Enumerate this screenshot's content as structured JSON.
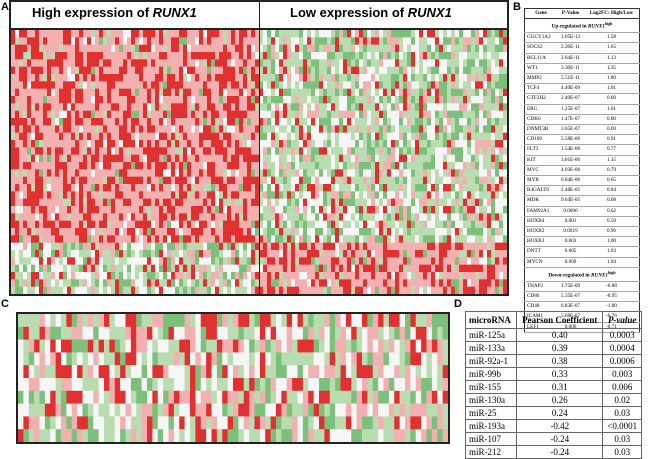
{
  "panel_labels": {
    "a": "A",
    "b": "B",
    "c": "C",
    "d": "D"
  },
  "panel_a": {
    "high_prefix": "High expression of ",
    "high_gene": "RUNX1",
    "low_prefix": "Low expression of ",
    "low_gene": "RUNX1"
  },
  "colors": {
    "red": "#e03030",
    "light_red": "#f2b0b0",
    "white": "#f6f6f6",
    "light_green": "#b9dcb0",
    "green": "#7cc07c"
  },
  "table_b": {
    "headers": [
      "Gene",
      "P-Value",
      "Log2FC: High/Low"
    ],
    "up_title_prefix": "Up-regulated in ",
    "up_title_gene": "RUNX1",
    "up_title_sup": "high",
    "up_rows": [
      [
        "GUCY1A3",
        "1.05E-13",
        "1.58"
      ],
      [
        "SOCS2",
        "2.26E-11",
        "1.65"
      ],
      [
        "BCL11A",
        "2.64E-11",
        "1.13"
      ],
      [
        "WT1",
        "3.30E-11",
        "1.35"
      ],
      [
        "MMP2",
        "5.51E-11",
        "1.80"
      ],
      [
        "TCF4",
        "4.40E-09",
        "1.01"
      ],
      [
        "GTF2H2",
        "2.40E-07",
        "0.60"
      ],
      [
        "ERG",
        "1.25E-07",
        "1.01"
      ],
      [
        "CDK6",
        "1.47E-07",
        "0.80"
      ],
      [
        "DNMT3B",
        "3.65E-07",
        "0.69"
      ],
      [
        "CD109",
        "5.58E-06",
        "0.91"
      ],
      [
        "FLT3",
        "1.54E-06",
        "0.77"
      ],
      [
        "KIT",
        "3.01E-06",
        "1.15"
      ],
      [
        "MYC",
        "4.93E-06",
        "0.79"
      ],
      [
        "MYB",
        "6.04E-06",
        "0.65"
      ],
      [
        "B4GALT6",
        "2.48E-05",
        "0.84"
      ],
      [
        "MDK",
        "9.64E-05",
        "0.68"
      ],
      [
        "FAM92A1",
        "0.0006",
        "0.62"
      ],
      [
        "HOXB4",
        "0.001",
        "0.59"
      ],
      [
        "HOXB2",
        "0.0019",
        "0.96"
      ],
      [
        "HOXB3",
        "0.003",
        "1.00"
      ],
      [
        "DNTT",
        "0.005",
        "1.03"
      ],
      [
        "MYCN",
        "0.009",
        "1.04"
      ]
    ],
    "down_title_prefix": "Down-regulated in ",
    "down_title_gene": "RUNX1",
    "down_title_sup": "high",
    "down_rows": [
      [
        "THAP2",
        "1.75E-09",
        "-0.88"
      ],
      [
        "CD86",
        "5.35E-07",
        "-0.95"
      ],
      [
        "CD48",
        "6.83E-07",
        "-1.00"
      ],
      [
        "ICAM1",
        "5.68E-07",
        "-0.76"
      ],
      [
        "LEF1",
        "0.006",
        "-0.71"
      ]
    ]
  },
  "table_d": {
    "headers": [
      "microRNA",
      "Pearson Coefficient",
      "P-value"
    ],
    "rows": [
      [
        "miR-125a",
        "0.40",
        "0.0003"
      ],
      [
        "miR-133a",
        "0.39",
        "0.0004"
      ],
      [
        "miR-92a-1",
        "0.38",
        "0.0006"
      ],
      [
        "miR-99b",
        "0.33",
        "0.003"
      ],
      [
        "miR-155",
        "0.31",
        "0.006"
      ],
      [
        "miR-130a",
        "0.26",
        "0.02"
      ],
      [
        "miR-25",
        "0.24",
        "0.03"
      ],
      [
        "miR-193a",
        "-0.42",
        "<0.0001"
      ],
      [
        "miR-107",
        "-0.24",
        "0.03"
      ],
      [
        "miR-212",
        "-0.24",
        "0.03"
      ]
    ]
  }
}
